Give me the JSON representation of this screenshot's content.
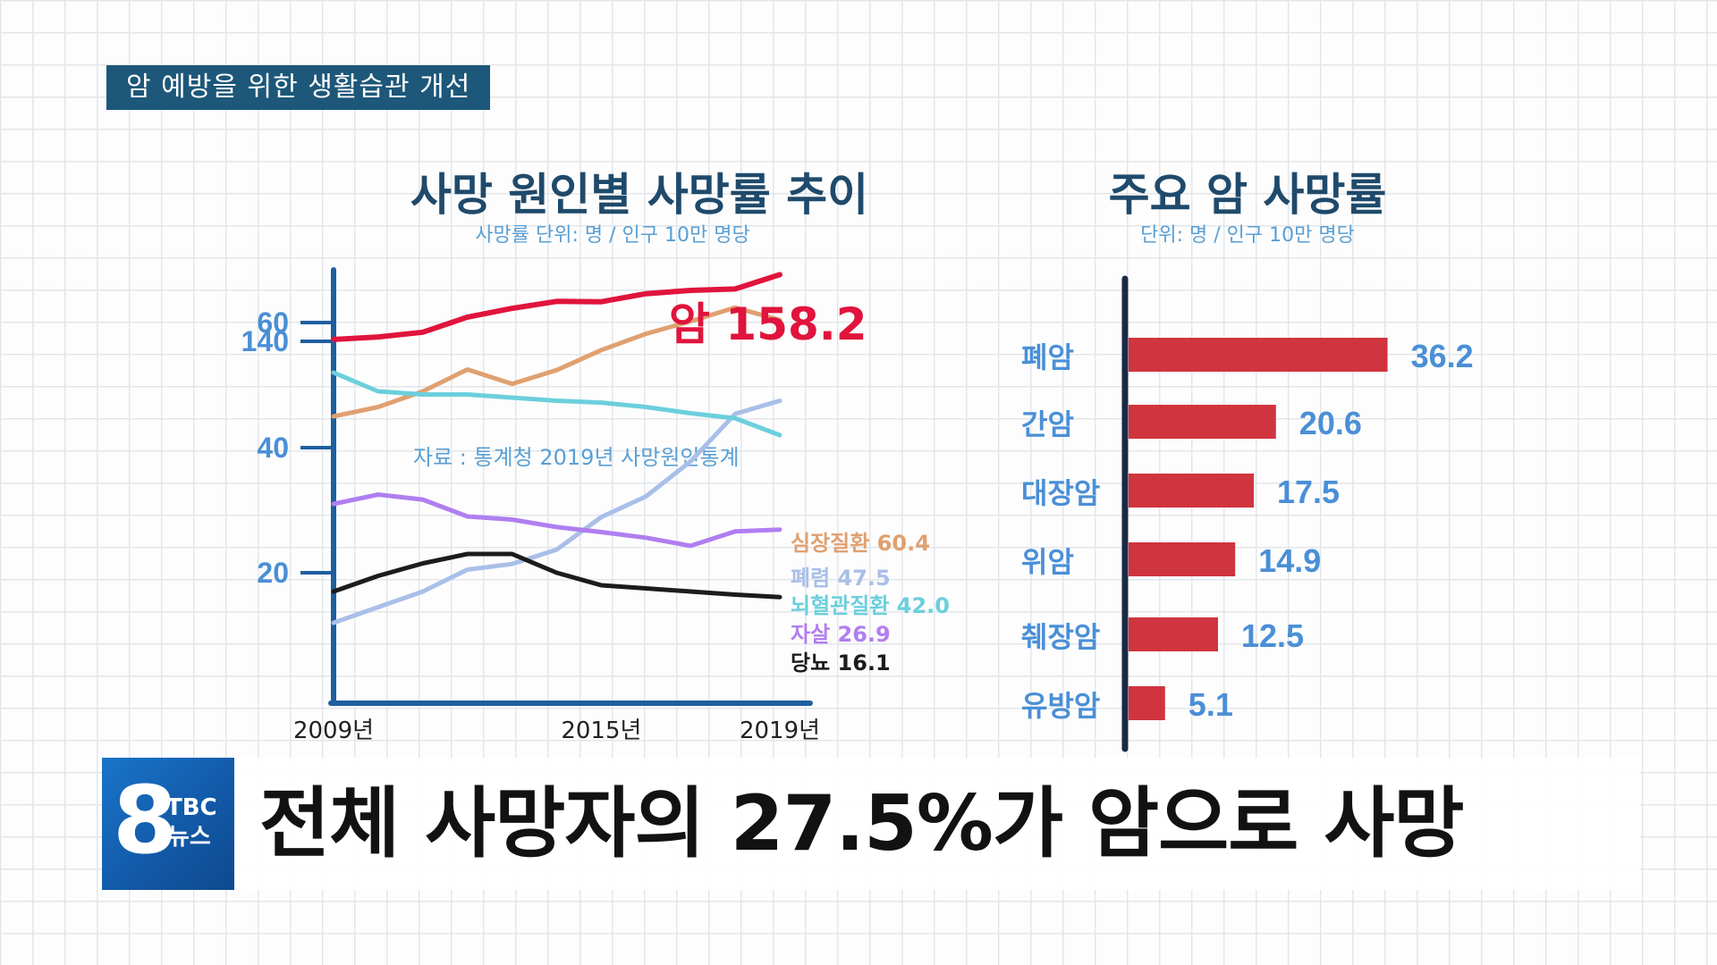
{
  "topic_banner": "암 예방을 위한 생활습관 개선",
  "headline": "전체 사망자의 27.5%가 암으로 사망",
  "logo": {
    "number": "8",
    "brand": "TBC",
    "news": "뉴스"
  },
  "colors": {
    "navy": "#1d5779",
    "title": "#1f4a6b",
    "axis": "#1d5fa0",
    "label_blue": "#4a8fd6",
    "bar_red": "#d0343f",
    "cancer_red": "#e0143c"
  },
  "line_chart": {
    "title": "사망 원인별 사망률 추이",
    "subtitle": "사망률 단위: 명 / 인구 10만 명당",
    "source": "자료 : 통계청 2019년 사망원인통계"
  },
  "bar_chart": {
    "title": "주요 암  사망률",
    "subtitle": "단위: 명 / 인구 10만 명당"
  },
  "chart_data": [
    {
      "type": "line",
      "title": "사망 원인별 사망률 추이",
      "x": [
        2009,
        2010,
        2011,
        2012,
        2013,
        2014,
        2015,
        2016,
        2017,
        2018,
        2019
      ],
      "x_tick_labels": [
        "2009년",
        "2015년",
        "2019년"
      ],
      "x_ticks": [
        2009,
        2015,
        2019
      ],
      "y_tick_labels": [
        "20",
        "40",
        "60",
        "140"
      ],
      "y_ticks": [
        20,
        40,
        60,
        140
      ],
      "series": [
        {
          "name": "암",
          "label": "암 158.2",
          "color": "#e0143c",
          "values": [
            140.5,
            141.2,
            142.5,
            146.6,
            149.0,
            150.9,
            150.8,
            153.0,
            153.9,
            154.3,
            158.2
          ]
        },
        {
          "name": "심장질환",
          "label": "심장질환 60.4",
          "color": "#e0a070",
          "values": [
            45.0,
            46.5,
            49.0,
            52.5,
            50.2,
            52.4,
            55.6,
            58.2,
            60.2,
            62.4,
            60.4
          ]
        },
        {
          "name": "폐렴",
          "label": "폐렴 47.5",
          "color": "#a9bfe8",
          "values": [
            12.0,
            14.5,
            17.0,
            20.5,
            21.4,
            23.7,
            28.9,
            32.2,
            37.8,
            45.4,
            47.5
          ]
        },
        {
          "name": "뇌혈관질환",
          "label": "뇌혈관질환 42.0",
          "color": "#6ccfdc",
          "values": [
            52.0,
            49.0,
            48.5,
            48.5,
            48.0,
            47.5,
            47.2,
            46.5,
            45.5,
            44.7,
            42.0
          ]
        },
        {
          "name": "자살",
          "label": "자살 26.9",
          "color": "#b07ef0",
          "values": [
            31.0,
            32.5,
            31.7,
            29.0,
            28.5,
            27.3,
            26.5,
            25.6,
            24.3,
            26.6,
            26.9
          ]
        },
        {
          "name": "당뇨",
          "label": "당뇨 16.1",
          "color": "#1c1c1c",
          "values": [
            17.0,
            19.5,
            21.5,
            23.0,
            23.0,
            20.0,
            18.0,
            17.5,
            17.0,
            16.5,
            16.1
          ]
        }
      ]
    },
    {
      "type": "bar",
      "title": "주요 암  사망률",
      "categories": [
        "폐암",
        "간암",
        "대장암",
        "위암",
        "췌장암",
        "유방암"
      ],
      "values": [
        36.2,
        20.6,
        17.5,
        14.9,
        12.5,
        5.1
      ],
      "value_labels": [
        "36.2",
        "20.6",
        "17.5",
        "14.9",
        "12.5",
        "5.1"
      ],
      "orientation": "horizontal",
      "bar_color": "#d0343f"
    }
  ]
}
